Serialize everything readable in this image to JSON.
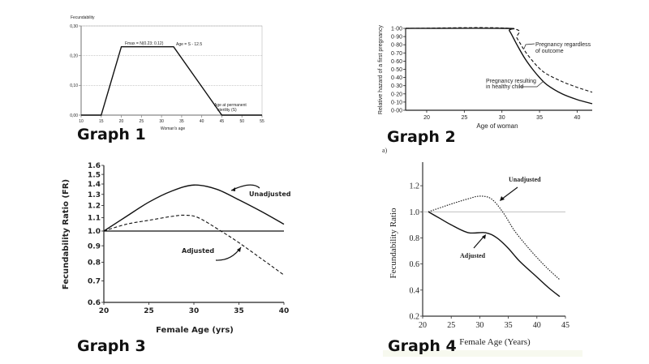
{
  "captions": [
    "Graph 1",
    "Graph 2",
    "Graph 3",
    "Graph 4"
  ],
  "panel_marker": "a)",
  "chart_data": [
    {
      "type": "line",
      "ylabel": "Fecundability",
      "xlabel": "Woman's age",
      "xlim": [
        10,
        55
      ],
      "ylim": [
        0,
        0.3
      ],
      "xticks": [
        "10",
        "15",
        "20",
        "25",
        "30",
        "35",
        "40",
        "45",
        "50",
        "55"
      ],
      "yticks": [
        "0,00",
        "0,10",
        "0,20",
        "0,30"
      ],
      "grid": "horizontal dotted",
      "series": [
        {
          "x": [
            10,
            15,
            20,
            33,
            45,
            55
          ],
          "y": [
            0,
            0,
            0.23,
            0.23,
            0,
            0
          ],
          "style": "solid"
        }
      ],
      "annotations": [
        "Fmax = N(0.23; 0.12)",
        "Age = S - 12.5",
        "Age at permanent",
        "sterility (S)"
      ]
    },
    {
      "type": "line",
      "ylabel": "Relative hazard of a first pregnancy",
      "xlabel": "Age of woman",
      "xlim": [
        17.2,
        42
      ],
      "ylim": [
        0,
        1.0
      ],
      "xticks": [
        "20",
        "25",
        "30",
        "35",
        "40"
      ],
      "yticks": [
        "0·00",
        "0·10",
        "0·20",
        "0·30",
        "0·40",
        "0·50",
        "0·60",
        "0·70",
        "0·80",
        "0·90",
        "1·00"
      ],
      "series": [
        {
          "name": "Pregnancy regardless of outcome",
          "style": "dashed",
          "x": [
            17.2,
            31,
            32,
            33,
            34,
            35,
            36,
            38,
            40,
            42
          ],
          "y": [
            1.0,
            1.0,
            0.88,
            0.73,
            0.61,
            0.51,
            0.44,
            0.35,
            0.28,
            0.22
          ]
        },
        {
          "name": "Pregnancy resulting in healthy child",
          "style": "solid",
          "x": [
            17.2,
            30.5,
            31,
            32,
            33,
            34,
            35,
            36,
            38,
            40,
            42
          ],
          "y": [
            1.0,
            1.0,
            0.97,
            0.8,
            0.64,
            0.51,
            0.4,
            0.31,
            0.2,
            0.13,
            0.08
          ]
        }
      ],
      "annotations": [
        "Pregnancy regardless",
        "of outcome",
        "Pregnancy resulting",
        "in healthy child"
      ]
    },
    {
      "type": "line",
      "ylabel": "Fecundability Ratio (FR)",
      "xlabel": "Female Age (yrs)",
      "xlim": [
        20,
        40
      ],
      "ylim": [
        0.6,
        1.6
      ],
      "yscale": "log",
      "xticks": [
        "20",
        "25",
        "30",
        "35",
        "40"
      ],
      "yticks": [
        "0.6",
        "0.7",
        "0.8",
        "0.9",
        "1.0",
        "1.1",
        "1.2",
        "1.3",
        "1.4",
        "1.5",
        "1.6"
      ],
      "reference_line": 1.0,
      "series": [
        {
          "name": "Unadjusted",
          "style": "solid",
          "x": [
            20,
            22.5,
            25,
            27.5,
            30,
            32.5,
            35,
            37.5,
            40
          ],
          "y": [
            1.0,
            1.11,
            1.23,
            1.33,
            1.39,
            1.35,
            1.25,
            1.15,
            1.05
          ]
        },
        {
          "name": "Adjusted",
          "style": "dashed",
          "x": [
            20,
            22.5,
            25,
            27.5,
            29,
            30.5,
            33,
            35,
            37.5,
            40
          ],
          "y": [
            1.0,
            1.05,
            1.08,
            1.11,
            1.12,
            1.1,
            1.0,
            0.92,
            0.82,
            0.73
          ]
        }
      ]
    },
    {
      "type": "line",
      "ylabel": "Fecundability Ratio",
      "xlabel": "Female Age (Years)",
      "xlim": [
        20,
        45
      ],
      "ylim": [
        0.2,
        1.3
      ],
      "xticks": [
        "20",
        "25",
        "30",
        "35",
        "40",
        "45"
      ],
      "yticks": [
        "0.2",
        "0.4",
        "0.6",
        "0.8",
        "1.0",
        "1.2"
      ],
      "reference_line": 1.0,
      "series": [
        {
          "name": "Unadjusted",
          "style": "dotted",
          "x": [
            21,
            25,
            28,
            30,
            32,
            34,
            36,
            38,
            40,
            42,
            44
          ],
          "y": [
            1.0,
            1.06,
            1.1,
            1.12,
            1.1,
            1.0,
            0.86,
            0.75,
            0.65,
            0.56,
            0.48
          ]
        },
        {
          "name": "Adjusted",
          "style": "solid",
          "x": [
            21,
            23,
            25,
            28,
            31,
            33,
            35,
            37,
            40,
            42,
            44
          ],
          "y": [
            1.0,
            0.95,
            0.9,
            0.84,
            0.84,
            0.8,
            0.72,
            0.62,
            0.5,
            0.42,
            0.35
          ]
        }
      ]
    }
  ]
}
